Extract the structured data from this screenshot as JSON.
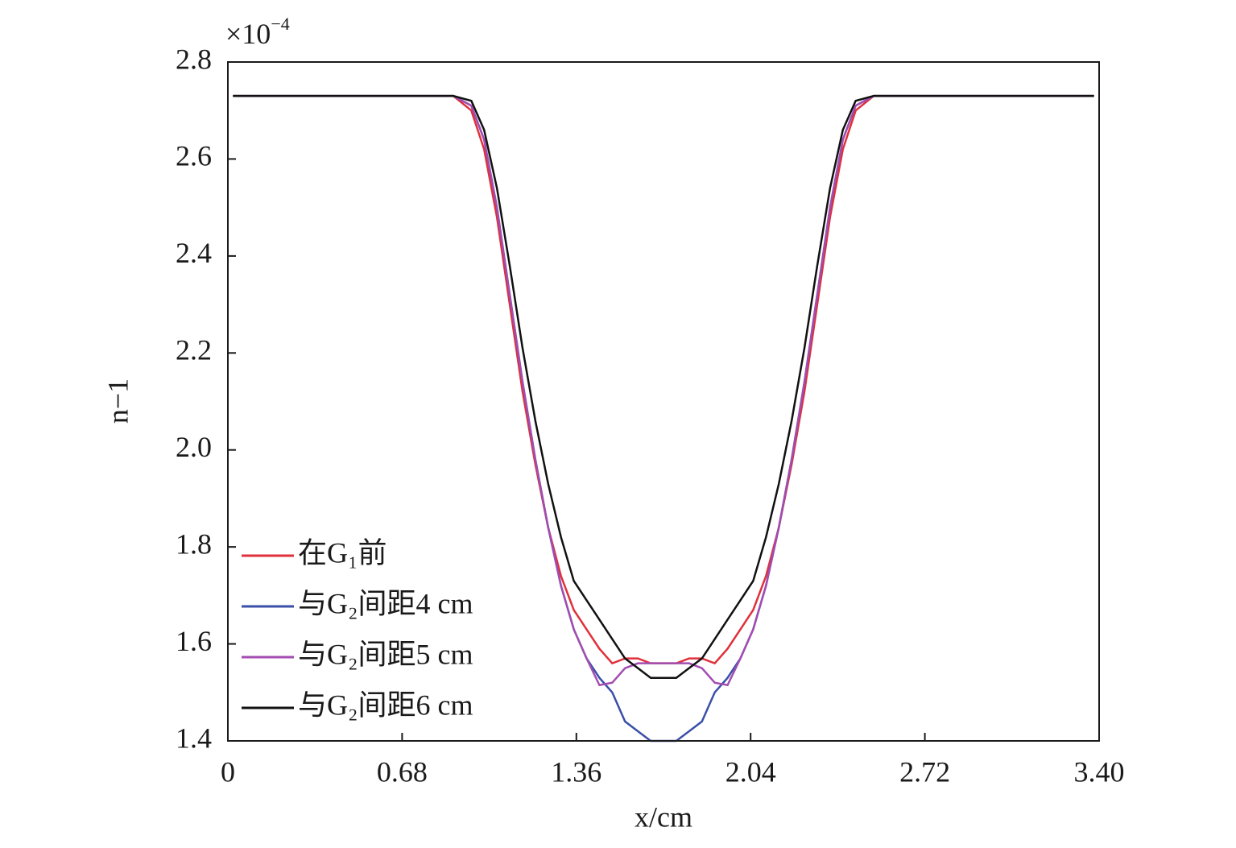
{
  "chart_data": {
    "type": "line",
    "y_multiplier": {
      "base": "×10",
      "exponent": "−4"
    },
    "xlabel": "x/cm",
    "ylabel": "n−1",
    "x": [
      0.02,
      0.5,
      0.88,
      0.95,
      1.0,
      1.05,
      1.1,
      1.15,
      1.2,
      1.25,
      1.3,
      1.35,
      1.4,
      1.45,
      1.5,
      1.55,
      1.6,
      1.65,
      1.7,
      1.75,
      1.8,
      1.85,
      1.9,
      1.95,
      2.0,
      2.05,
      2.1,
      2.15,
      2.2,
      2.25,
      2.3,
      2.35,
      2.4,
      2.45,
      2.52,
      2.9,
      3.38
    ],
    "series": [
      {
        "name": "在G₁前",
        "color": "#e0303a",
        "values": [
          2.73,
          2.73,
          2.73,
          2.7,
          2.62,
          2.48,
          2.3,
          2.12,
          1.97,
          1.84,
          1.74,
          1.67,
          1.63,
          1.59,
          1.56,
          1.57,
          1.57,
          1.56,
          1.56,
          1.56,
          1.57,
          1.57,
          1.56,
          1.59,
          1.63,
          1.67,
          1.74,
          1.84,
          1.97,
          2.12,
          2.3,
          2.48,
          2.62,
          2.7,
          2.73,
          2.73,
          2.73
        ]
      },
      {
        "name": "与G₂间距4 cm",
        "color": "#3a4fa8",
        "values": [
          2.73,
          2.73,
          2.73,
          2.71,
          2.64,
          2.5,
          2.32,
          2.14,
          1.98,
          1.84,
          1.72,
          1.63,
          1.57,
          1.53,
          1.5,
          1.44,
          1.42,
          1.4,
          1.4,
          1.4,
          1.42,
          1.44,
          1.5,
          1.53,
          1.57,
          1.63,
          1.72,
          1.84,
          1.98,
          2.14,
          2.32,
          2.5,
          2.64,
          2.71,
          2.73,
          2.73,
          2.73
        ]
      },
      {
        "name": "与G₂间距5 cm",
        "color": "#a24db0",
        "values": [
          2.73,
          2.73,
          2.73,
          2.71,
          2.64,
          2.5,
          2.32,
          2.14,
          1.98,
          1.84,
          1.72,
          1.63,
          1.57,
          1.515,
          1.52,
          1.55,
          1.56,
          1.56,
          1.56,
          1.56,
          1.56,
          1.55,
          1.52,
          1.515,
          1.57,
          1.63,
          1.72,
          1.84,
          1.98,
          2.14,
          2.32,
          2.5,
          2.64,
          2.71,
          2.73,
          2.73,
          2.73
        ]
      },
      {
        "name": "与G₂间距6 cm",
        "color": "#111111",
        "values": [
          2.73,
          2.73,
          2.73,
          2.72,
          2.66,
          2.54,
          2.38,
          2.21,
          2.06,
          1.93,
          1.82,
          1.73,
          1.69,
          1.65,
          1.61,
          1.57,
          1.55,
          1.53,
          1.53,
          1.53,
          1.55,
          1.57,
          1.61,
          1.65,
          1.69,
          1.73,
          1.82,
          1.93,
          2.06,
          2.21,
          2.38,
          2.54,
          2.66,
          2.72,
          2.73,
          2.73,
          2.73
        ]
      }
    ],
    "xlim": [
      0,
      3.4
    ],
    "xticks": [
      0,
      0.68,
      1.36,
      2.04,
      2.72,
      {
        "value": 3.4,
        "label": "3.40"
      }
    ],
    "ylim": [
      1.4,
      2.8
    ],
    "yticks": [
      1.4,
      1.6,
      1.8,
      {
        "value": 2,
        "label": "2.0"
      },
      2.2,
      2.4,
      2.6,
      2.8
    ],
    "legend": "lower left",
    "grid": false
  }
}
